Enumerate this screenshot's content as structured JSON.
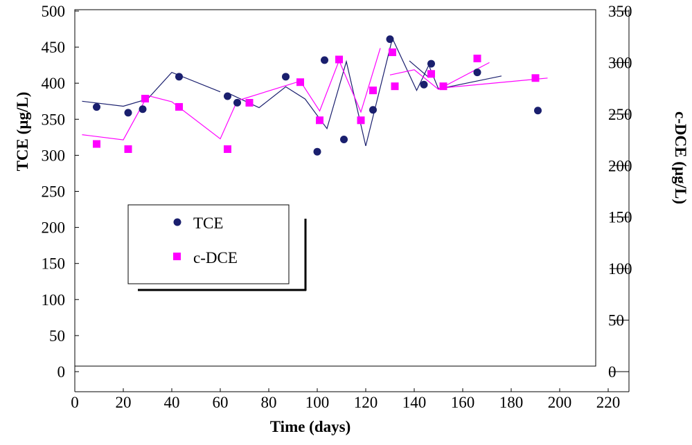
{
  "chart_data": {
    "type": "scatter",
    "title": "",
    "xlabel": "Time (days)",
    "ylabel_left": "TCE (µg/L)",
    "ylabel_right": "c-DCE (µg/L)",
    "xlim": [
      0,
      220
    ],
    "ylim_left": [
      0,
      500
    ],
    "ylim_right": [
      0,
      350
    ],
    "x_ticks": [
      "0",
      "20",
      "40",
      "60",
      "80",
      "100",
      "120",
      "140",
      "160",
      "180",
      "200",
      "220"
    ],
    "y_left_ticks": [
      "0",
      "50",
      "100",
      "150",
      "200",
      "250",
      "300",
      "350",
      "400",
      "450",
      "500"
    ],
    "y_right_ticks": [
      "0",
      "50",
      "100",
      "150",
      "200",
      "250",
      "300",
      "350"
    ],
    "grid": false,
    "legend_position": "center-left",
    "series": [
      {
        "name": "TCE",
        "axis": "left",
        "marker": "circle",
        "color": "#1a1f6e",
        "x": [
          9,
          22,
          28,
          43,
          63,
          67,
          87,
          100,
          103,
          111,
          123,
          130,
          144,
          147,
          166,
          191
        ],
        "y": [
          367,
          359,
          364,
          409,
          382,
          373,
          409,
          305,
          432,
          322,
          363,
          461,
          398,
          427,
          415,
          362
        ]
      },
      {
        "name": "c-DCE",
        "axis": "right",
        "marker": "square",
        "color": "#ff00ff",
        "x": [
          9,
          22,
          29,
          43,
          63,
          72,
          93,
          101,
          109,
          118,
          123,
          131,
          132,
          147,
          152,
          166,
          190
        ],
        "y": [
          221,
          216,
          265,
          257,
          216,
          261,
          281,
          244,
          303,
          244,
          273,
          310,
          277,
          289,
          277,
          304,
          285
        ]
      }
    ],
    "trend_lines": [
      {
        "series": "TCE",
        "color": "#1a1f6e",
        "segments": [
          {
            "x": [
              3,
              20,
              30,
              40,
              60
            ],
            "y": [
              375,
              368,
              378,
              415,
              388
            ]
          },
          {
            "x": [
              64,
              76,
              87,
              95,
              104,
              112,
              120,
              131,
              141,
              146,
              150
            ],
            "y": [
              385,
              366,
              395,
              378,
              337,
              430,
              313,
              462,
              390,
              425,
              392
            ]
          },
          {
            "x": [
              138,
              146
            ],
            "y": [
              431,
              408
            ]
          },
          {
            "x": [
              150,
              176
            ],
            "y": [
              392,
              410
            ]
          }
        ]
      },
      {
        "series": "c-DCE",
        "color": "#ff00ff",
        "segments": [
          {
            "x": [
              3,
              20,
              30,
              40,
              60,
              67,
              93,
              101,
              109,
              118,
              126
            ],
            "y": [
              230,
              225,
              268,
              262,
              226,
              263,
              282,
              253,
              302,
              252,
              314
            ]
          },
          {
            "x": [
              130,
              140,
              150,
              171
            ],
            "y": [
              288,
              293,
              274,
              300
            ]
          },
          {
            "x": [
              150,
              195
            ],
            "y": [
              275,
              285
            ]
          }
        ]
      }
    ]
  }
}
